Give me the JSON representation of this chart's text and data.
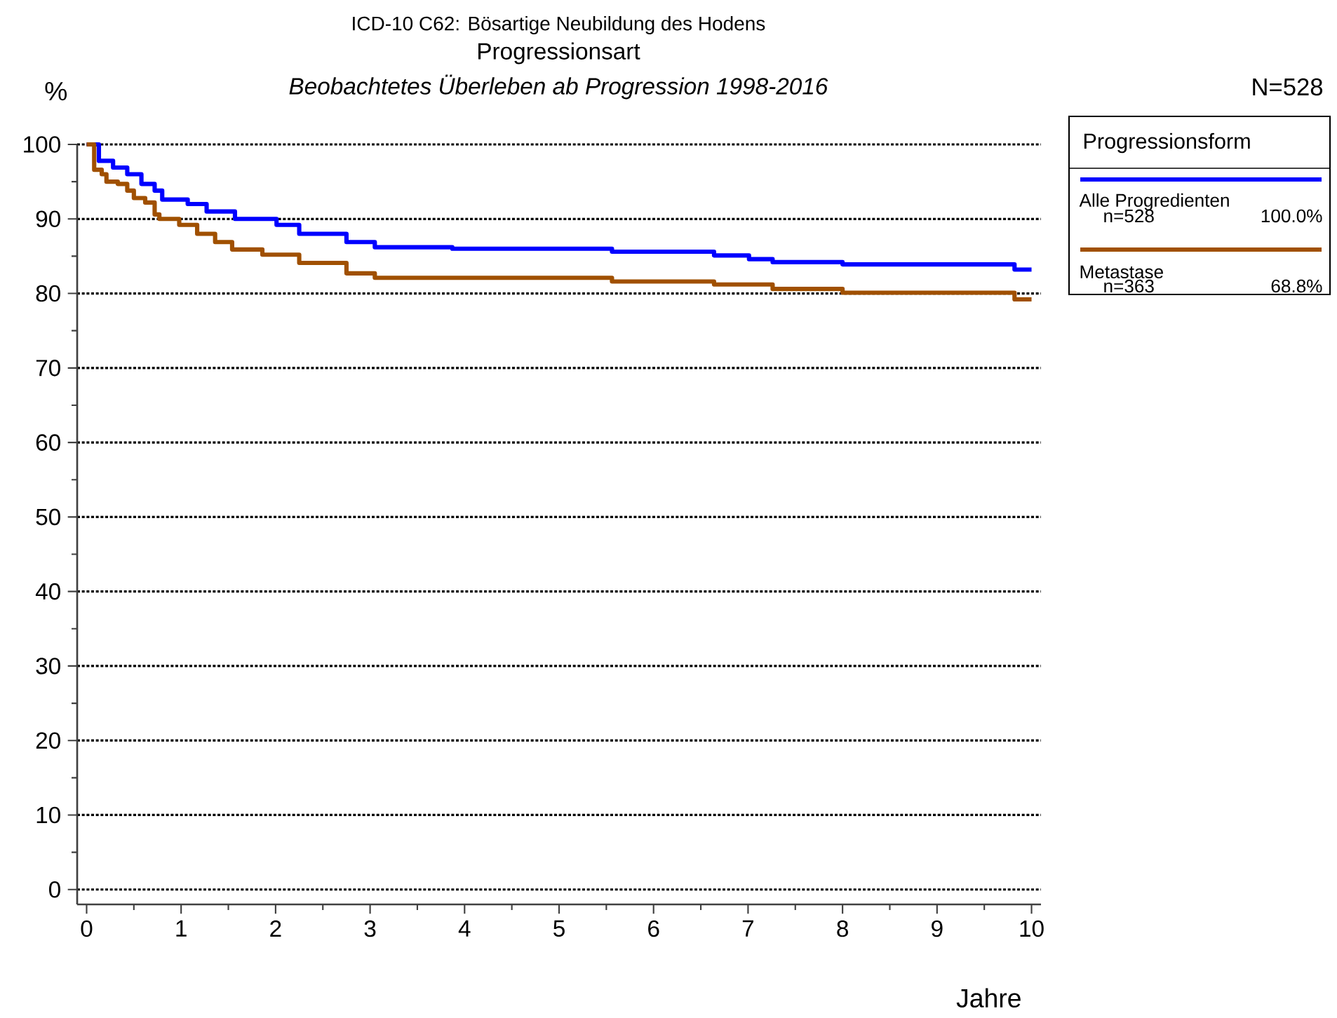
{
  "chart_data": {
    "type": "step",
    "title": "ICD-10 C62: Bösartige Neubildung des Hodens",
    "subtitle": "Progressionsart",
    "xlabel": "Jahre",
    "ylabel": "%",
    "legend_title": "Progressionsform",
    "annotations": [
      "Beobachtetes Überleben ab Progression 1998-2016",
      "N=528",
      "n=528",
      "100.0%",
      "n=363",
      "68.8%"
    ],
    "xlim": [
      -0.1,
      10.1
    ],
    "ylim": [
      -2,
      100
    ],
    "xticks": [
      0,
      1,
      2,
      3,
      4,
      5,
      6,
      7,
      8,
      9,
      10
    ],
    "yticks": [
      0,
      10,
      20,
      30,
      40,
      50,
      60,
      70,
      80,
      90,
      100
    ],
    "grid": "y",
    "legend": "right",
    "line_style": "solid",
    "series": [
      {
        "name": "Alle Progredienten",
        "color": "#0000ff",
        "x": [
          0,
          0.13,
          0.28,
          0.43,
          0.58,
          0.72,
          0.8,
          1.07,
          1.27,
          1.57,
          2.01,
          2.25,
          2.75,
          3.05,
          3.87,
          5.56,
          6.64,
          7.01,
          7.26,
          8.0,
          9.82,
          10
        ],
        "values": [
          100,
          97.8,
          96.9,
          96,
          94.7,
          93.8,
          92.6,
          92,
          91,
          90,
          89.2,
          88,
          86.9,
          86.2,
          86,
          85.6,
          85.1,
          84.6,
          84.2,
          83.9,
          83.2,
          83.2
        ]
      },
      {
        "name": "Metastase",
        "color": "#a05000",
        "x": [
          0,
          0.08,
          0.16,
          0.21,
          0.33,
          0.43,
          0.5,
          0.62,
          0.72,
          0.77,
          0.98,
          1.17,
          1.36,
          1.54,
          1.86,
          2.25,
          2.75,
          3.05,
          5.56,
          6.64,
          7.26,
          8.0,
          9.82,
          10
        ],
        "values": [
          100,
          96.6,
          96,
          95,
          94.7,
          93.8,
          92.8,
          92.2,
          90.6,
          90,
          89.2,
          88,
          86.9,
          85.9,
          85.2,
          84.1,
          82.7,
          82.1,
          81.6,
          81.2,
          80.6,
          80.1,
          79.2,
          79.2
        ]
      }
    ]
  }
}
